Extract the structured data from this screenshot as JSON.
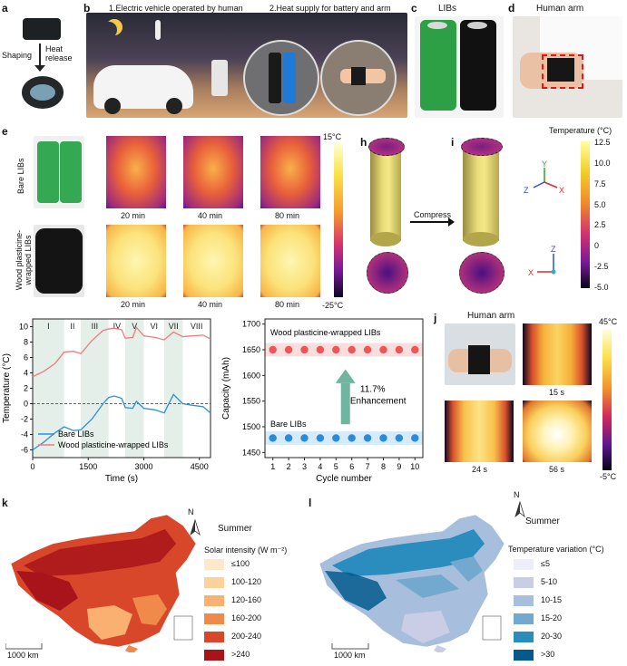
{
  "panels": {
    "a": {
      "label": "a",
      "arrow_left": "Shaping",
      "arrow_right": "Heat release"
    },
    "b": {
      "label": "b",
      "text1": "1.Electric vehicle operated by human",
      "text2": "2.Heat supply for battery and arm"
    },
    "c": {
      "label": "c",
      "title": "LIBs"
    },
    "d": {
      "label": "d",
      "title": "Human arm"
    },
    "e": {
      "label": "e",
      "row1": "Bare LIBs",
      "row2": "Wood plasticine-wrapped LIBs",
      "times": [
        "20 min",
        "40 min",
        "80 min"
      ],
      "scale_top": "15°C",
      "scale_bottom": "-25°C"
    },
    "h": {
      "label": "h"
    },
    "i": {
      "label": "i",
      "arrow": "Compress",
      "scale_title": "Temperature (°C)",
      "scale_ticks": [
        "12.5",
        "10.0",
        "7.5",
        "5.0",
        "2.5",
        "0",
        "-2.5",
        "-5.0"
      ],
      "axis_labels": [
        "Y",
        "Z",
        "X",
        "Z",
        "X",
        "Y"
      ]
    },
    "j": {
      "label": "j",
      "title": "Human arm",
      "times": [
        "15 s",
        "24 s",
        "56 s"
      ],
      "scale_top": "45°C",
      "scale_bottom": "-5°C"
    },
    "k": {
      "label": "k",
      "season": "Summer",
      "legend_title": "Solar intensity (W m⁻²)",
      "legend": [
        {
          "label": "≤100",
          "color": "#fde8cc"
        },
        {
          "label": "100-120",
          "color": "#fcd29a"
        },
        {
          "label": "120-160",
          "color": "#f9b071"
        },
        {
          "label": "160-200",
          "color": "#f08a4b"
        },
        {
          "label": "200-240",
          "color": "#d9472b"
        },
        {
          "label": ">240",
          "color": "#a8141a"
        }
      ],
      "scale_bar": "1000 km",
      "north": "N"
    },
    "l": {
      "label": "l",
      "season": "Summer",
      "legend_title": "Temperature variation (°C)",
      "legend": [
        {
          "label": "≤5",
          "color": "#edeef7"
        },
        {
          "label": "5-10",
          "color": "#c9cde6"
        },
        {
          "label": "10-15",
          "color": "#a7bfdc"
        },
        {
          "label": "15-20",
          "color": "#74a9cf"
        },
        {
          "label": "20-30",
          "color": "#2b8cbe"
        },
        {
          "label": ">30",
          "color": "#045a8d"
        }
      ],
      "scale_bar": "1000 km",
      "north": "N"
    }
  },
  "chart_data": [
    {
      "type": "line",
      "panel": "f",
      "ylabel": "Temperature (°C)",
      "xlabel": "Time (s)",
      "xlim": [
        0,
        4800
      ],
      "ylim": [
        -7,
        11
      ],
      "xticks": [
        0,
        1500,
        3000,
        4500
      ],
      "yticks": [
        -6,
        -4,
        -2,
        0,
        2,
        4,
        6,
        8,
        10
      ],
      "stages": [
        "I",
        "II",
        "III",
        "IV",
        "V",
        "VI",
        "VII",
        "VIII"
      ],
      "stage_bounds": [
        0,
        850,
        1300,
        2050,
        2500,
        3000,
        3550,
        4050,
        4800
      ],
      "series": [
        {
          "name": "Bare LIBs",
          "color": "#2b8fd9",
          "x": [
            0,
            300,
            600,
            850,
            1100,
            1300,
            1600,
            1900,
            2050,
            2200,
            2400,
            2500,
            2700,
            2800,
            3000,
            3300,
            3550,
            3800,
            4050,
            4300,
            4600,
            4800
          ],
          "y": [
            -6,
            -5,
            -3.8,
            -3,
            -3.5,
            -3.4,
            -2,
            0,
            0.8,
            1,
            0.7,
            -0.5,
            -0.6,
            0.3,
            -0.6,
            -0.8,
            -1.2,
            1.2,
            0,
            -0.2,
            -0.4,
            -1.2
          ]
        },
        {
          "name": "Wood plasticine-wrapped LIBs",
          "color": "#f47a7a",
          "x": [
            0,
            300,
            600,
            850,
            1100,
            1300,
            1600,
            1900,
            2050,
            2200,
            2400,
            2500,
            2700,
            2800,
            3000,
            3300,
            3550,
            3800,
            4050,
            4300,
            4600,
            4800
          ],
          "y": [
            3.5,
            4.2,
            5.2,
            6.7,
            6.8,
            6.5,
            8.2,
            9.5,
            9.7,
            9.8,
            9.6,
            8.5,
            8.6,
            9.9,
            8.8,
            8.6,
            8.3,
            9.3,
            8.7,
            8.8,
            8.9,
            8.4
          ]
        }
      ]
    },
    {
      "type": "scatter",
      "panel": "g",
      "ylabel": "Capacity (mAh)",
      "xlabel": "Cycle number",
      "xlim": [
        0.5,
        10.5
      ],
      "ylim": [
        1440,
        1710
      ],
      "yticks": [
        1450,
        1500,
        1550,
        1600,
        1650,
        1700
      ],
      "xticks": [
        1,
        2,
        3,
        4,
        5,
        6,
        7,
        8,
        9,
        10
      ],
      "annotation": "11.7%",
      "annotation2": "Enhancement",
      "series": [
        {
          "name": "Wood plasticine-wrapped LIBs",
          "color": "#ef5555",
          "band": "#fadede",
          "x": [
            1,
            2,
            3,
            4,
            5,
            6,
            7,
            8,
            9,
            10
          ],
          "y": [
            1650,
            1650,
            1650,
            1650,
            1650,
            1650,
            1650,
            1650,
            1650,
            1650
          ]
        },
        {
          "name": "Bare LIBs",
          "color": "#2a8bd8",
          "band": "#d6ebf8",
          "x": [
            1,
            2,
            3,
            4,
            5,
            6,
            7,
            8,
            9,
            10
          ],
          "y": [
            1478,
            1478,
            1478,
            1478,
            1478,
            1478,
            1478,
            1478,
            1478,
            1478
          ]
        }
      ]
    }
  ]
}
